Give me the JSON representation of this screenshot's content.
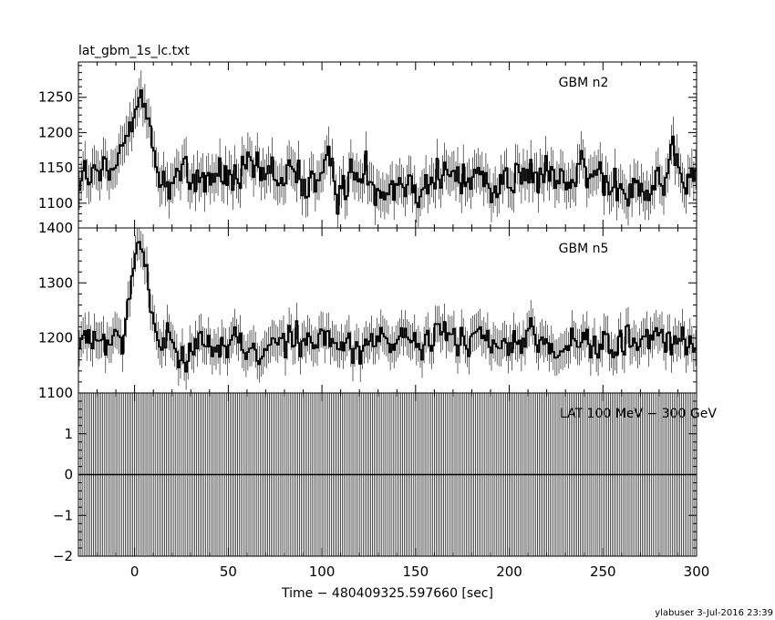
{
  "chart_data": {
    "type": "line",
    "title": "lat_gbm_1s_lc.txt",
    "xlabel": "Time − 480409325.597660 [sec]",
    "xlim": [
      -30,
      300
    ],
    "xticks": [
      0,
      50,
      100,
      150,
      200,
      250,
      300
    ],
    "footer": "ylabuser  3-Jul-2016 23:39",
    "panels": [
      {
        "name": "GBM n2",
        "ylim": [
          1065,
          1300
        ],
        "yticks": [
          1100,
          1150,
          1200,
          1250
        ],
        "ytick_labels": [
          "1100",
          "1150",
          "1200",
          "1250"
        ],
        "baseline": 1135,
        "noise": 28,
        "error": 28,
        "peak": {
          "x": 1,
          "height": 130,
          "width": 5
        },
        "samples": [
          [
            -30,
            1140
          ],
          [
            -20,
            1150
          ],
          [
            -10,
            1140
          ],
          [
            -5,
            1160
          ],
          [
            -2,
            1215
          ],
          [
            0,
            1240
          ],
          [
            2,
            1265
          ],
          [
            4,
            1220
          ],
          [
            6,
            1150
          ],
          [
            20,
            1150
          ],
          [
            50,
            1140
          ],
          [
            100,
            1135
          ],
          [
            150,
            1135
          ],
          [
            200,
            1135
          ],
          [
            250,
            1140
          ],
          [
            300,
            1120
          ]
        ]
      },
      {
        "name": "GBM n5",
        "ylim": [
          1100,
          1400
        ],
        "yticks": [
          1100,
          1200,
          1300,
          1400
        ],
        "ytick_labels": [
          "1100",
          "1200",
          "1300",
          "1400"
        ],
        "baseline": 1190,
        "noise": 28,
        "error": 33,
        "peak": {
          "x": 2,
          "height": 175,
          "width": 4.5
        },
        "samples": [
          [
            -30,
            1170
          ],
          [
            -20,
            1200
          ],
          [
            -10,
            1160
          ],
          [
            -5,
            1230
          ],
          [
            -2,
            1300
          ],
          [
            0,
            1330
          ],
          [
            2,
            1365
          ],
          [
            4,
            1300
          ],
          [
            6,
            1220
          ],
          [
            20,
            1190
          ],
          [
            50,
            1185
          ],
          [
            100,
            1190
          ],
          [
            150,
            1190
          ],
          [
            200,
            1190
          ],
          [
            250,
            1195
          ],
          [
            300,
            1190
          ]
        ]
      },
      {
        "name": "LAT 100 MeV − 300 GeV",
        "ylim": [
          -2,
          2
        ],
        "yticks": [
          -2,
          -1,
          0,
          1
        ],
        "ytick_labels": [
          "−2",
          "−1",
          "0",
          "1"
        ],
        "value": 0,
        "error_bars": "full-height"
      }
    ]
  }
}
